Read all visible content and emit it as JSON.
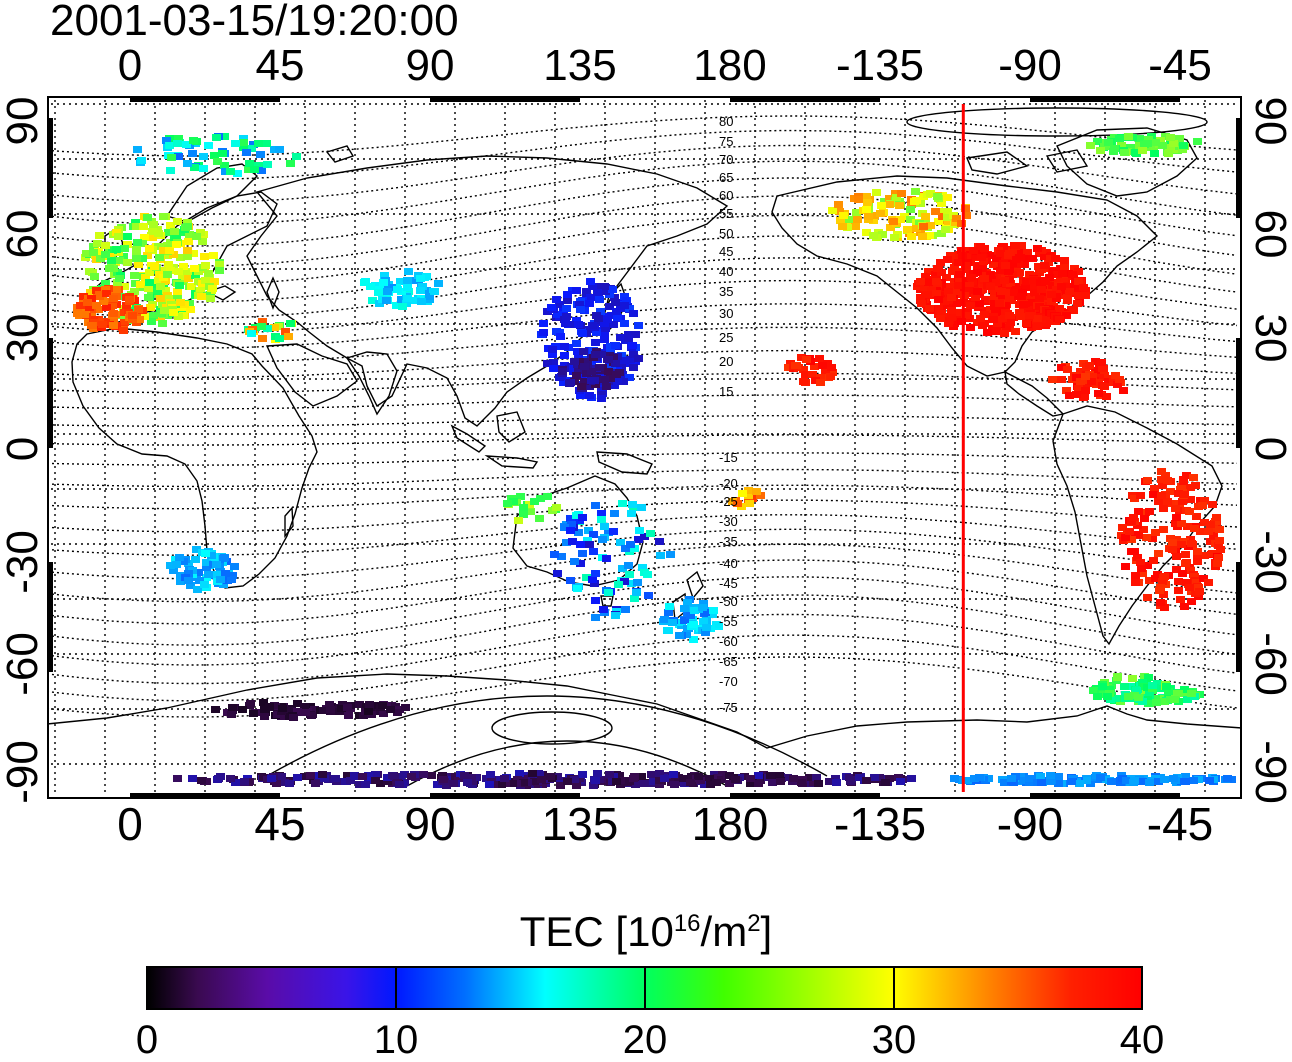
{
  "title": "2001-03-15/19:20:00",
  "longitude_labels": [
    "0",
    "45",
    "90",
    "135",
    "180",
    "-135",
    "-90",
    "-45"
  ],
  "latitude_labels": [
    "90",
    "60",
    "30",
    "0",
    "-30",
    "-60",
    "-90"
  ],
  "contour_labels": [
    "80",
    "75",
    "70",
    "65",
    "60",
    "55",
    "50",
    "45",
    "40",
    "35",
    "30",
    "25",
    "20",
    "15",
    "-15",
    "-20",
    "-25",
    "-30",
    "-35",
    "-40",
    "-45",
    "-50",
    "-55",
    "-60",
    "-65",
    "-70",
    "-75"
  ],
  "colorbar": {
    "title_prefix": "TEC  [10",
    "title_exp1": "16",
    "title_mid": "/m",
    "title_exp2": "2",
    "title_suffix": "]",
    "ticks": [
      "0",
      "10",
      "20",
      "30",
      "40"
    ],
    "min": 0,
    "max": 40
  },
  "marker_longitude": -110,
  "colors": {
    "low": "#000000",
    "high": "#ff0000",
    "marker": "#ff0000"
  }
}
